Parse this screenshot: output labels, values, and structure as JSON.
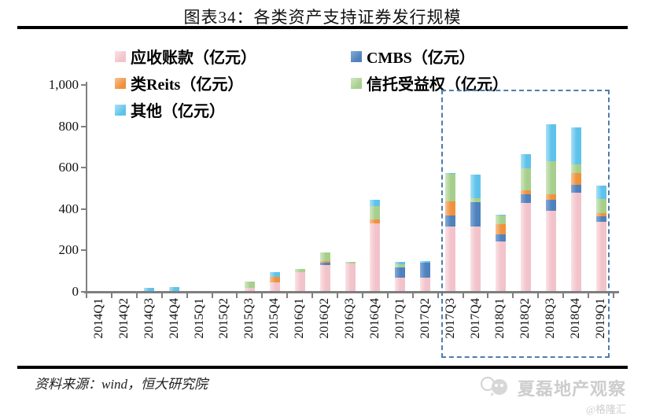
{
  "header": {
    "title": "图表34：各类资产支持证券发行规模"
  },
  "chart_data": {
    "type": "bar",
    "stacked": true,
    "title": "图表34：各类资产支持证券发行规模",
    "unit": "亿元",
    "grid": false,
    "legend_position": "top-left",
    "axis_color": "#7f7f7f",
    "ylim": [
      0,
      1000
    ],
    "yticks": [
      0,
      200,
      400,
      600,
      800,
      1000
    ],
    "ytick_labels": [
      "0",
      "200",
      "400",
      "600",
      "800",
      "1,000"
    ],
    "categories": [
      "2014Q1",
      "2014Q2",
      "2014Q3",
      "2014Q4",
      "2015Q1",
      "2015Q2",
      "2015Q3",
      "2015Q4",
      "2016Q1",
      "2016Q2",
      "2016Q3",
      "2016Q4",
      "2017Q1",
      "2017Q2",
      "2017Q3",
      "2017Q4",
      "2018Q1",
      "2018Q2",
      "2018Q3",
      "2018Q4",
      "2019Q1"
    ],
    "series": [
      {
        "name": "应收账款（亿元）",
        "color": "#F2C3CA",
        "color_light": "#FAE2E6",
        "values": [
          0,
          0,
          0,
          0,
          0,
          0,
          15,
          40,
          92,
          125,
          133,
          328,
          65,
          63,
          310,
          310,
          240,
          425,
          387,
          475,
          335
        ]
      },
      {
        "name": "CMBS（亿元）",
        "color": "#4E81BD",
        "color_light": "#85ABD6",
        "values": [
          0,
          0,
          0,
          0,
          0,
          0,
          0,
          0,
          0,
          12,
          0,
          0,
          50,
          73,
          57,
          120,
          32,
          44,
          56,
          38,
          25
        ]
      },
      {
        "name": "类Reits（亿元）",
        "color": "#F0913C",
        "color_light": "#F8C294",
        "values": [
          0,
          0,
          0,
          0,
          0,
          0,
          0,
          30,
          0,
          6,
          0,
          17,
          0,
          0,
          68,
          0,
          50,
          19,
          26,
          57,
          18
        ]
      },
      {
        "name": "信托受益权（亿元）",
        "color": "#A6CF8C",
        "color_light": "#D2E7C2",
        "values": [
          0,
          0,
          0,
          0,
          0,
          0,
          30,
          0,
          13,
          42,
          7,
          67,
          13,
          0,
          130,
          18,
          43,
          107,
          158,
          44,
          68
        ]
      },
      {
        "name": "其他（亿元）",
        "color": "#5EC2EB",
        "color_light": "#ABE1F6",
        "values": [
          0,
          0,
          15,
          18,
          0,
          0,
          0,
          20,
          0,
          0,
          0,
          28,
          12,
          10,
          5,
          115,
          5,
          65,
          178,
          176,
          62
        ]
      }
    ],
    "highlight_box": {
      "from": "2017Q3",
      "to": "2019Q1",
      "color": "#4E7CB0",
      "style": "dashed"
    }
  },
  "footer": {
    "source": "资料来源：wind，恒大研究院"
  },
  "watermark": {
    "brand": "夏磊地产观察",
    "handle": "@格隆汇"
  }
}
